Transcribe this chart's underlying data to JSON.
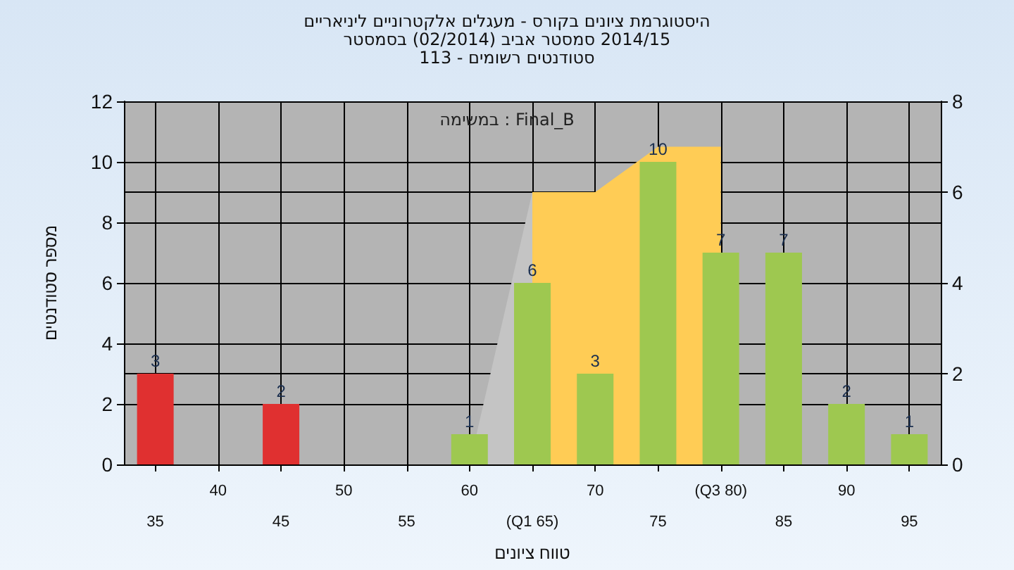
{
  "chart_data": {
    "type": "bar",
    "title": "היסטוגרמת ציונים בקורס - מעגלים אלקטרוניים ליניאריים",
    "subtitle": "2014/15 סמסטר אביב (02/2014) בסמסטר\nסטודנטים רשומים - 113",
    "xlabel": "טווח ציונים",
    "ylabel": "מספר סטודנטים",
    "annotations": [
      "Final_B : במשימה"
    ],
    "categories": [
      "35",
      "40",
      "45",
      "50",
      "55",
      "60",
      "(Q1 65)",
      "70",
      "75",
      "(Q3 80)",
      "85",
      "90",
      "95"
    ],
    "series": [
      {
        "type": "area",
        "axis": "y2",
        "color": "#c4c4c4",
        "values": [
          null,
          null,
          null,
          null,
          null,
          0,
          6,
          null,
          null,
          null,
          null,
          null,
          null
        ]
      },
      {
        "type": "area",
        "axis": "y2",
        "color": "#ffcc55",
        "values": [
          null,
          null,
          null,
          null,
          null,
          null,
          6,
          6,
          7,
          7,
          null,
          null,
          null
        ]
      },
      {
        "value_labels": [
          "3",
          null,
          "2",
          null,
          null,
          "1",
          "6",
          "3",
          "10",
          "7",
          "7",
          "2",
          "1"
        ],
        "colors": [
          "#e03030",
          "#9ec850",
          "#e03030",
          "#9ec850",
          "#9ec850",
          "#9ec850",
          "#9ec850",
          "#9ec850",
          "#9ec850",
          "#9ec850",
          "#9ec850",
          "#9ec850",
          "#9ec850"
        ],
        "values": [
          3,
          null,
          2,
          null,
          null,
          1,
          6,
          3,
          10,
          7,
          7,
          2,
          1
        ]
      }
    ],
    "ylim": [
      0,
      12
    ],
    "yticks": [
      0,
      2,
      4,
      6,
      8,
      10,
      12
    ],
    "y2lim": [
      0,
      8
    ],
    "y2ticks": [
      0,
      2,
      4,
      6,
      8
    ],
    "grid": true
  }
}
